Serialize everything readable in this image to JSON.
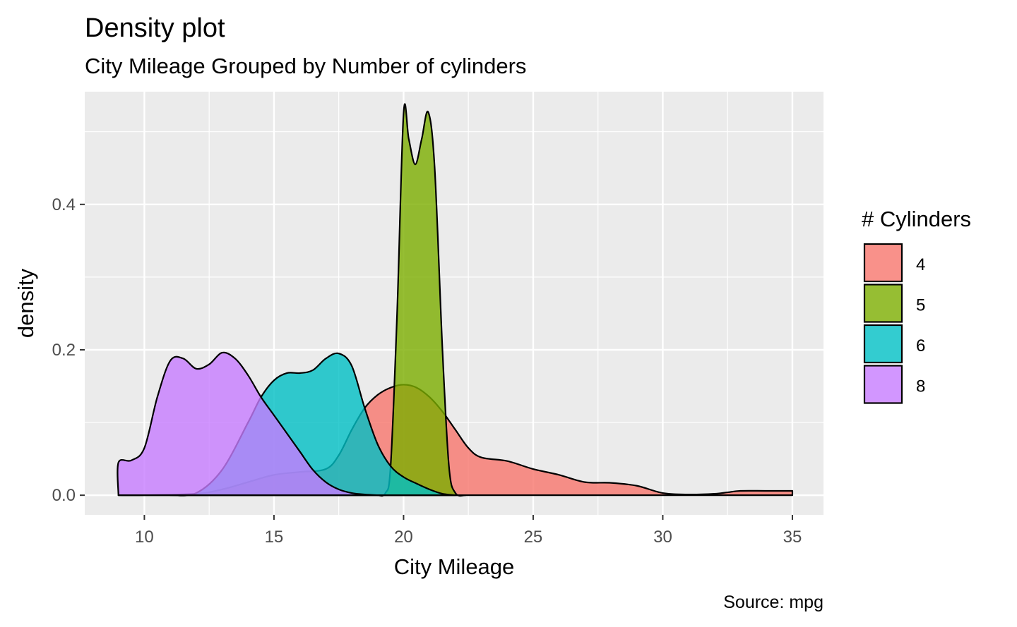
{
  "chart_data": {
    "type": "area",
    "title": "Density plot",
    "subtitle": "City Mileage Grouped by Number of cylinders",
    "xlabel": "City Mileage",
    "ylabel": "density",
    "caption": "Source: mpg",
    "xlim": [
      7.7,
      36.2
    ],
    "ylim": [
      -0.027,
      0.555
    ],
    "x_ticks": [
      10,
      15,
      20,
      25,
      30,
      35
    ],
    "x_tick_labels": [
      "10",
      "15",
      "20",
      "25",
      "30",
      "35"
    ],
    "y_ticks": [
      0.0,
      0.2,
      0.4
    ],
    "y_tick_labels": [
      "0.0",
      "0.2",
      "0.4"
    ],
    "grid": true,
    "legend": {
      "title": "# Cylinders",
      "position": "right"
    },
    "series": [
      {
        "name": "4",
        "color": "#F8766D",
        "points": [
          [
            9.0,
            0.0
          ],
          [
            10.0,
            0.0
          ],
          [
            12.0,
            0.002
          ],
          [
            13.0,
            0.008
          ],
          [
            14.0,
            0.018
          ],
          [
            15.0,
            0.028
          ],
          [
            16.0,
            0.032
          ],
          [
            17.0,
            0.036
          ],
          [
            17.5,
            0.055
          ],
          [
            18.0,
            0.09
          ],
          [
            18.5,
            0.12
          ],
          [
            19.0,
            0.138
          ],
          [
            19.5,
            0.148
          ],
          [
            20.0,
            0.152
          ],
          [
            20.5,
            0.148
          ],
          [
            21.0,
            0.135
          ],
          [
            21.5,
            0.115
          ],
          [
            22.0,
            0.09
          ],
          [
            22.5,
            0.065
          ],
          [
            23.0,
            0.052
          ],
          [
            24.0,
            0.047
          ],
          [
            25.0,
            0.036
          ],
          [
            26.0,
            0.028
          ],
          [
            27.0,
            0.018
          ],
          [
            28.0,
            0.017
          ],
          [
            29.0,
            0.013
          ],
          [
            30.0,
            0.003
          ],
          [
            31.0,
            0.001
          ],
          [
            32.0,
            0.002
          ],
          [
            32.5,
            0.004
          ],
          [
            33.0,
            0.006
          ],
          [
            34.0,
            0.006
          ],
          [
            35.0,
            0.006
          ]
        ]
      },
      {
        "name": "5",
        "color": "#7CAE00",
        "points": [
          [
            19.0,
            0.0
          ],
          [
            19.3,
            0.003
          ],
          [
            19.5,
            0.04
          ],
          [
            19.75,
            0.25
          ],
          [
            20.0,
            0.525
          ],
          [
            20.2,
            0.49
          ],
          [
            20.45,
            0.455
          ],
          [
            20.7,
            0.49
          ],
          [
            20.95,
            0.527
          ],
          [
            21.2,
            0.45
          ],
          [
            21.5,
            0.2
          ],
          [
            21.75,
            0.04
          ],
          [
            22.0,
            0.003
          ],
          [
            22.4,
            0.0
          ]
        ]
      },
      {
        "name": "6",
        "color": "#00BFC4",
        "points": [
          [
            11.0,
            0.0
          ],
          [
            12.0,
            0.003
          ],
          [
            13.0,
            0.035
          ],
          [
            14.0,
            0.1
          ],
          [
            14.5,
            0.135
          ],
          [
            15.0,
            0.158
          ],
          [
            15.5,
            0.168
          ],
          [
            16.0,
            0.168
          ],
          [
            16.5,
            0.172
          ],
          [
            17.0,
            0.188
          ],
          [
            17.5,
            0.195
          ],
          [
            18.0,
            0.178
          ],
          [
            18.5,
            0.12
          ],
          [
            19.0,
            0.07
          ],
          [
            19.5,
            0.04
          ],
          [
            20.0,
            0.025
          ],
          [
            20.5,
            0.016
          ],
          [
            21.0,
            0.008
          ],
          [
            21.5,
            0.002
          ],
          [
            22.0,
            0.0
          ]
        ]
      },
      {
        "name": "8",
        "color": "#C77CFF",
        "points": [
          [
            9.0,
            0.0
          ],
          [
            9.0,
            0.045
          ],
          [
            9.5,
            0.048
          ],
          [
            10.0,
            0.065
          ],
          [
            10.5,
            0.135
          ],
          [
            11.0,
            0.185
          ],
          [
            11.5,
            0.188
          ],
          [
            12.0,
            0.174
          ],
          [
            12.5,
            0.18
          ],
          [
            13.0,
            0.196
          ],
          [
            13.5,
            0.188
          ],
          [
            14.0,
            0.165
          ],
          [
            14.5,
            0.135
          ],
          [
            15.0,
            0.11
          ],
          [
            15.5,
            0.085
          ],
          [
            16.0,
            0.06
          ],
          [
            16.5,
            0.035
          ],
          [
            17.0,
            0.018
          ],
          [
            17.5,
            0.008
          ],
          [
            18.0,
            0.003
          ],
          [
            18.5,
            0.001
          ],
          [
            19.0,
            0.0
          ]
        ]
      }
    ]
  }
}
